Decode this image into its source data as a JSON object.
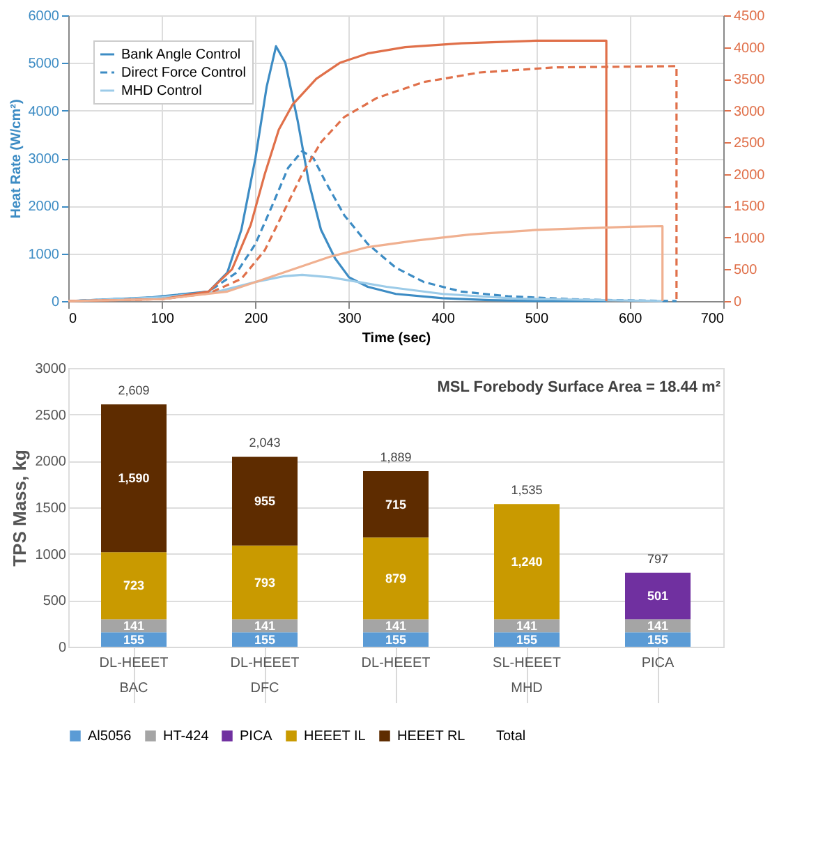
{
  "chart_data": [
    {
      "type": "line",
      "xlabel": "Time (sec)",
      "ylabel": "Heat Rate (W/cm²)",
      "xlim": [
        0,
        700
      ],
      "xticks": [
        0,
        100,
        200,
        300,
        400,
        500,
        600,
        700
      ],
      "ylim": [
        0,
        6000
      ],
      "yticks": [
        0,
        1000,
        2000,
        3000,
        4000,
        5000,
        6000
      ],
      "y2lim": [
        0,
        4500
      ],
      "y2ticks": [
        0,
        500,
        1000,
        1500,
        2000,
        2500,
        3000,
        3500,
        4000,
        4500
      ],
      "grid": true,
      "legend": "top left",
      "series": [
        {
          "name": "Bank Angle Control",
          "color": "#3d8cc4",
          "line_style": "solid",
          "x": [
            0,
            90,
            100,
            150,
            170,
            185,
            200,
            212,
            222,
            232,
            245,
            257,
            270,
            285,
            300,
            320,
            350,
            400,
            450,
            500,
            575
          ],
          "values": [
            0,
            80,
            100,
            200,
            600,
            1500,
            3000,
            4500,
            5350,
            5000,
            3800,
            2500,
            1500,
            900,
            500,
            300,
            150,
            60,
            20,
            0,
            0
          ]
        },
        {
          "name": "Direct Force Control",
          "color": "#3d8cc4",
          "line_style": "dashed",
          "x": [
            0,
            100,
            150,
            180,
            200,
            220,
            235,
            250,
            262,
            275,
            295,
            320,
            350,
            380,
            420,
            470,
            550,
            650
          ],
          "values": [
            0,
            80,
            200,
            600,
            1200,
            2100,
            2800,
            3150,
            3000,
            2500,
            1800,
            1200,
            700,
            400,
            200,
            100,
            30,
            0
          ]
        },
        {
          "name": "MHD Control",
          "color": "#9ccbe8",
          "line_style": "solid",
          "x": [
            0,
            100,
            160,
            200,
            230,
            250,
            280,
            310,
            340,
            400,
            480,
            635
          ],
          "values": [
            0,
            80,
            200,
            400,
            520,
            550,
            500,
            400,
            300,
            150,
            50,
            0
          ]
        },
        {
          "color": "#e0704a",
          "line_style": "solid",
          "axis": "y2",
          "x": [
            0,
            100,
            150,
            175,
            195,
            210,
            225,
            240,
            265,
            290,
            320,
            360,
            420,
            500,
            575,
            575
          ],
          "values": [
            0,
            30,
            150,
            500,
            1200,
            2000,
            2700,
            3100,
            3500,
            3750,
            3900,
            4000,
            4060,
            4100,
            4100,
            0
          ]
        },
        {
          "color": "#e0704a",
          "line_style": "dashed",
          "axis": "y2",
          "x": [
            0,
            100,
            150,
            185,
            210,
            230,
            250,
            270,
            295,
            330,
            380,
            440,
            520,
            650,
            650
          ],
          "values": [
            0,
            30,
            120,
            350,
            800,
            1400,
            2000,
            2500,
            2900,
            3200,
            3450,
            3600,
            3680,
            3700,
            0
          ]
        },
        {
          "color": "#f0b090",
          "line_style": "solid",
          "axis": "y2",
          "x": [
            0,
            100,
            170,
            200,
            240,
            280,
            320,
            370,
            430,
            500,
            600,
            635,
            635
          ],
          "values": [
            0,
            30,
            150,
            300,
            500,
            700,
            850,
            950,
            1050,
            1120,
            1170,
            1180,
            0
          ]
        }
      ]
    },
    {
      "type": "bar",
      "stacked": true,
      "ylabel": "TPS Mass, kg",
      "ylim": [
        0,
        3000
      ],
      "yticks": [
        0,
        500,
        1000,
        1500,
        2000,
        2500,
        3000
      ],
      "grid": "y",
      "legend": "bottom",
      "categories": [
        "DL-HEEET\nBAC",
        "DL-HEEET\nDFC",
        "DL-HEEET",
        "SL-HEEET\nMHD",
        "PICA"
      ],
      "totals": [
        "2,609",
        "2,043",
        "1,889",
        "1,535",
        "797"
      ],
      "annotations": [
        "MSL Forebody Surface Area = 18.44 m²"
      ],
      "series": [
        {
          "name": "Al5056",
          "color": "#5b9bd5",
          "values": [
            155,
            155,
            155,
            155,
            155
          ],
          "value_labels": [
            "155",
            "155",
            "155",
            "155",
            "155"
          ]
        },
        {
          "name": "HT-424",
          "color": "#a5a5a5",
          "values": [
            141,
            141,
            141,
            141,
            141
          ],
          "value_labels": [
            "141",
            "141",
            "141",
            "141",
            "141"
          ]
        },
        {
          "name": "PICA",
          "color": "#7030a0",
          "values": [
            null,
            null,
            null,
            null,
            501
          ],
          "value_labels": [
            null,
            null,
            null,
            null,
            "501"
          ]
        },
        {
          "name": "HEEET IL",
          "color": "#c99a00",
          "values": [
            723,
            793,
            879,
            1240,
            null
          ],
          "value_labels": [
            "723",
            "793",
            "879",
            "1,240",
            null
          ]
        },
        {
          "name": "HEEET RL",
          "color": "#5e2c00",
          "values": [
            1590,
            955,
            715,
            null,
            null
          ],
          "value_labels": [
            "1,590",
            "955",
            "715",
            null,
            null
          ]
        },
        {
          "name": "Total",
          "values": [
            null,
            null,
            null,
            null,
            null
          ]
        }
      ]
    }
  ]
}
